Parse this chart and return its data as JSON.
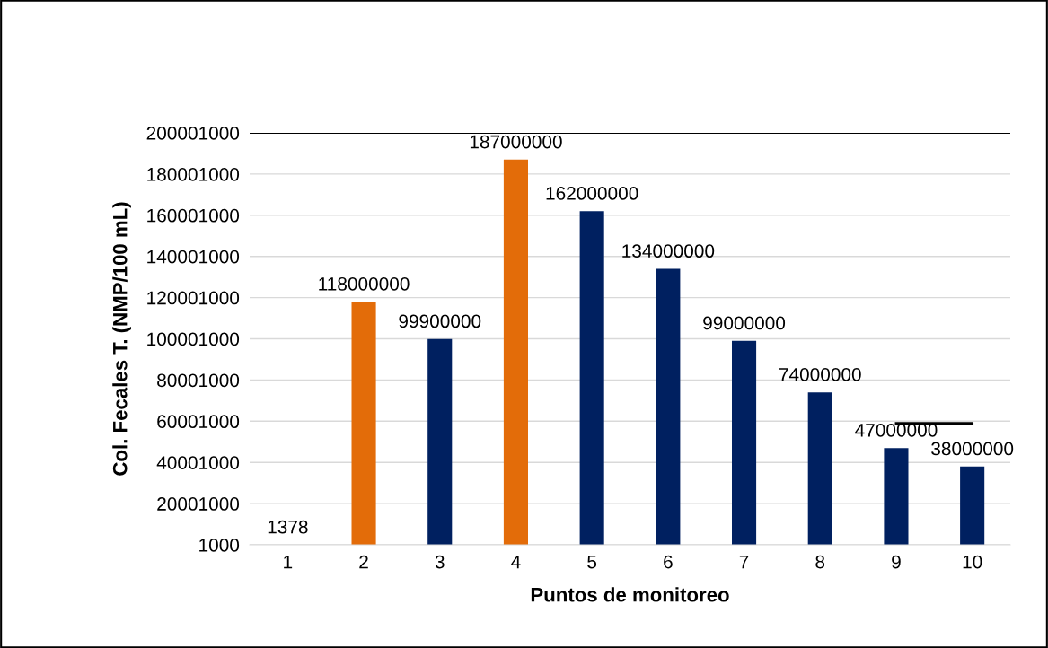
{
  "chart_data": {
    "type": "bar",
    "xlabel": "Puntos de monitoreo",
    "ylabel": "Col. Fecales T. (NMP/100 mL)",
    "categories": [
      "1",
      "2",
      "3",
      "4",
      "5",
      "6",
      "7",
      "8",
      "9",
      "10"
    ],
    "series": [
      {
        "values": [
          1378,
          118000000,
          99900000,
          187000000,
          162000000,
          134000000,
          99000000,
          74000000,
          47000000,
          38000000
        ],
        "value_labels": [
          "1378",
          "118000000",
          "99900000",
          "187000000",
          "162000000",
          "134000000",
          "99000000",
          "74000000",
          "47000000",
          "38000000"
        ],
        "colors": [
          "#002060",
          "#e36c09",
          "#002060",
          "#e36c09",
          "#002060",
          "#002060",
          "#002060",
          "#002060",
          "#002060",
          "#002060"
        ]
      },
      {
        "type": "line",
        "color": "#000000",
        "values": [
          null,
          null,
          null,
          null,
          null,
          null,
          null,
          null,
          59000000,
          59000000
        ]
      }
    ],
    "ylim": [
      1000,
      200001000
    ],
    "yticks": [
      1000,
      20001000,
      40001000,
      60001000,
      80001000,
      100001000,
      120001000,
      140001000,
      160001000,
      180001000,
      200001000
    ],
    "ref_lines": [
      {
        "axis": "y",
        "value": 200001000,
        "color": "#000000"
      }
    ],
    "grid": "y",
    "legend": false
  }
}
